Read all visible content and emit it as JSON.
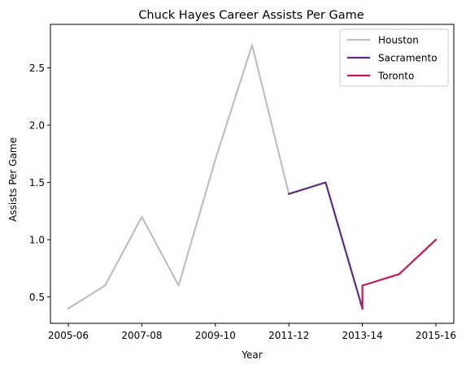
{
  "chart_data": {
    "type": "line",
    "title": "Chuck Hayes Career Assists Per Game",
    "xlabel": "Year",
    "ylabel": "Assists Per Game",
    "x_categories": [
      "2005-06",
      "2006-07",
      "2007-08",
      "2008-09",
      "2009-10",
      "2010-11",
      "2011-12",
      "2012-13",
      "2013-14",
      "2014-15",
      "2015-16"
    ],
    "x_tick_labels": [
      "2005-06",
      "2007-08",
      "2009-10",
      "2011-12",
      "2013-14",
      "2015-16"
    ],
    "y_ticks": [
      0.5,
      1.0,
      1.5,
      2.0,
      2.5
    ],
    "y_tick_labels": [
      "0.5",
      "1.0",
      "1.5",
      "2.0",
      "2.5"
    ],
    "ylim": [
      0.27,
      2.88
    ],
    "grid": false,
    "legend_position": "top-right",
    "series": [
      {
        "name": "Houston",
        "color": "#bfbfbf",
        "points": [
          {
            "x": "2005-06",
            "y": 0.4
          },
          {
            "x": "2006-07",
            "y": 0.6
          },
          {
            "x": "2007-08",
            "y": 1.2
          },
          {
            "x": "2008-09",
            "y": 0.6
          },
          {
            "x": "2009-10",
            "y": 1.7
          },
          {
            "x": "2010-11",
            "y": 2.7
          },
          {
            "x": "2011-12",
            "y": 1.4
          }
        ]
      },
      {
        "name": "Sacramento",
        "color": "#5b2c83",
        "points": [
          {
            "x": "2011-12",
            "y": 1.4
          },
          {
            "x": "2012-13",
            "y": 1.5
          },
          {
            "x": "2013-14",
            "y": 0.4
          }
        ]
      },
      {
        "name": "Toronto",
        "color": "#c8174f",
        "points": [
          {
            "x": "2013-14",
            "y": 0.4
          },
          {
            "x": "2013-14",
            "y": 0.6
          },
          {
            "x": "2014-15",
            "y": 0.7
          },
          {
            "x": "2015-16",
            "y": 1.0
          }
        ]
      }
    ]
  }
}
